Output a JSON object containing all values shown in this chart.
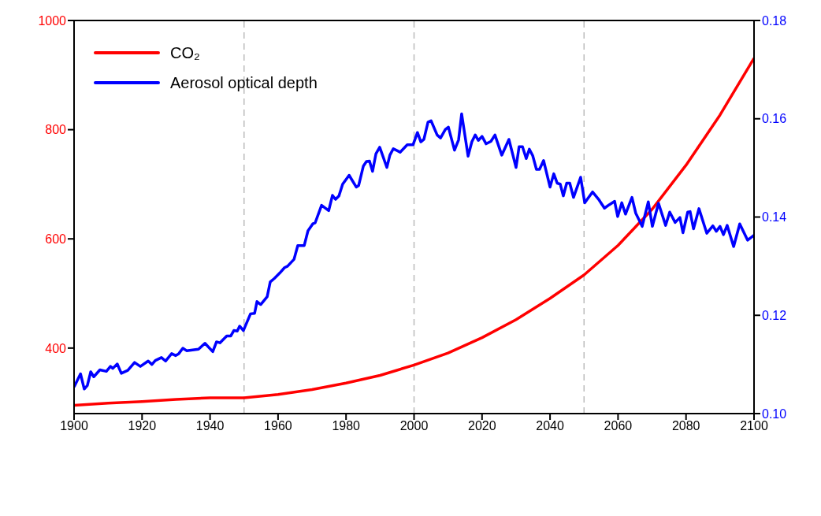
{
  "chart_data": {
    "type": "line",
    "legend": "top left",
    "grid": false,
    "marker": "none",
    "line_style": "solid",
    "xlim": [
      1900,
      2100
    ],
    "xticks": [
      1900,
      1920,
      1940,
      1960,
      1980,
      2000,
      2020,
      2040,
      2060,
      2080,
      2100
    ],
    "ylim": [
      280,
      1000
    ],
    "yticks": [
      400,
      600,
      800,
      1000
    ],
    "y2lim": [
      0.1,
      0.18
    ],
    "y2ticks": [
      {
        "value": 0.1,
        "label": "0.10"
      },
      {
        "value": 0.12,
        "label": "0.12"
      },
      {
        "value": 0.14,
        "label": "0.14"
      },
      {
        "value": 0.16,
        "label": "0.16"
      },
      {
        "value": 0.18,
        "label": "0.18"
      }
    ],
    "ref_lines": [
      {
        "axis": "x",
        "value": 1950,
        "color": "#bbbbbb",
        "line_style": "dashed"
      },
      {
        "axis": "x",
        "value": 2000,
        "color": "#bbbbbb",
        "line_style": "dashed"
      },
      {
        "axis": "x",
        "value": 2050,
        "color": "#bbbbbb",
        "line_style": "dashed"
      }
    ],
    "series": [
      {
        "name": "CO₂",
        "color": "#ff0000",
        "x": [
          1900,
          1910,
          1920,
          1930,
          1940,
          1950,
          1960,
          1970,
          1980,
          1990,
          2000,
          2010,
          2020,
          2030,
          2040,
          2050,
          2060,
          2070,
          2080,
          2090,
          2100
        ],
        "values": [
          295,
          299,
          302,
          306,
          309,
          309,
          315,
          324,
          336,
          350,
          369,
          391,
          419,
          452,
          491,
          534,
          588,
          654,
          735,
          827,
          931
        ]
      },
      {
        "name": "Aerosol optical depth",
        "color": "#0000ff",
        "axis": "y2",
        "x": [
          1900,
          1901.9,
          1903,
          1903.9,
          1904.9,
          1905.8,
          1907.6,
          1909.5,
          1910.7,
          1911.4,
          1912.7,
          1913.9,
          1915.8,
          1917.8,
          1919.5,
          1921.8,
          1922.9,
          1923.9,
          1925.7,
          1926.9,
          1928.7,
          1929.9,
          1930.8,
          1932,
          1933.1,
          1936.6,
          1938.5,
          1940.8,
          1941.9,
          1942.9,
          1944.9,
          1946.1,
          1947,
          1948,
          1948.7,
          1949.8,
          1951.9,
          1953.1,
          1953.8,
          1954.9,
          1956.8,
          1957.7,
          1958.9,
          1960.5,
          1961.9,
          1962.8,
          1964.7,
          1965.8,
          1967.7,
          1968.8,
          1970.2,
          1970.9,
          1972.8,
          1974.9,
          1976,
          1976.9,
          1977.9,
          1979,
          1980.9,
          1983,
          1983.7,
          1985.1,
          1986,
          1986.9,
          1987.8,
          1988.8,
          1989.9,
          1992,
          1992.9,
          1993.9,
          1995.9,
          1998,
          1999.7,
          2001,
          2002,
          2002.9,
          2004.1,
          2005,
          2006.8,
          2007.8,
          2009.2,
          2010.1,
          2011.9,
          2013.1,
          2014,
          2015.9,
          2017,
          2018,
          2018.9,
          2020,
          2021.2,
          2022.6,
          2023.8,
          2025.8,
          2027.9,
          2030,
          2030.9,
          2031.9,
          2033,
          2033.9,
          2034.9,
          2036,
          2036.9,
          2038.1,
          2040,
          2041.1,
          2042.1,
          2043,
          2043.9,
          2044.9,
          2045.8,
          2046.9,
          2049,
          2050.2,
          2052.5,
          2054.3,
          2056,
          2057.4,
          2059,
          2059.9,
          2061.1,
          2062.2,
          2064.1,
          2065.2,
          2067.1,
          2068.9,
          2070.1,
          2071.9,
          2074,
          2075.2,
          2076.8,
          2078.2,
          2079.1,
          2080.5,
          2081.2,
          2082.2,
          2083.8,
          2086.1,
          2087.9,
          2088.9,
          2090,
          2091,
          2092.1,
          2094,
          2095.8,
          2098.1,
          2100
        ],
        "values": [
          0.1054,
          0.1081,
          0.105,
          0.1057,
          0.1085,
          0.1075,
          0.1089,
          0.1086,
          0.1096,
          0.1092,
          0.1101,
          0.1082,
          0.1088,
          0.1104,
          0.1096,
          0.1107,
          0.11,
          0.1108,
          0.1114,
          0.1107,
          0.1122,
          0.1118,
          0.1122,
          0.1133,
          0.1128,
          0.1131,
          0.1143,
          0.1126,
          0.1146,
          0.1144,
          0.1158,
          0.1158,
          0.1169,
          0.1168,
          0.1178,
          0.1169,
          0.1203,
          0.1204,
          0.1228,
          0.1222,
          0.1238,
          0.1268,
          0.1275,
          0.1286,
          0.1297,
          0.13,
          0.1314,
          0.1342,
          0.1342,
          0.1372,
          0.1386,
          0.1388,
          0.1424,
          0.1413,
          0.1444,
          0.1436,
          0.1443,
          0.1467,
          0.1485,
          0.1461,
          0.1464,
          0.1504,
          0.1513,
          0.1514,
          0.1493,
          0.1529,
          0.1542,
          0.1501,
          0.1526,
          0.1539,
          0.1532,
          0.1547,
          0.1547,
          0.1572,
          0.1553,
          0.1558,
          0.1593,
          0.1596,
          0.1567,
          0.1561,
          0.1578,
          0.1583,
          0.1536,
          0.1557,
          0.161,
          0.1524,
          0.1553,
          0.1567,
          0.1556,
          0.1564,
          0.1549,
          0.1554,
          0.1567,
          0.1526,
          0.1558,
          0.1501,
          0.1543,
          0.1543,
          0.1519,
          0.1538,
          0.1525,
          0.1497,
          0.1497,
          0.1515,
          0.1461,
          0.1488,
          0.1469,
          0.1467,
          0.1443,
          0.1469,
          0.1469,
          0.144,
          0.1481,
          0.1429,
          0.1451,
          0.1436,
          0.1418,
          0.1425,
          0.1432,
          0.1401,
          0.1429,
          0.1406,
          0.144,
          0.1408,
          0.1381,
          0.1431,
          0.1381,
          0.1428,
          0.1383,
          0.141,
          0.1389,
          0.1399,
          0.1368,
          0.141,
          0.1411,
          0.1376,
          0.1417,
          0.1367,
          0.1382,
          0.1371,
          0.1381,
          0.1364,
          0.1383,
          0.134,
          0.1386,
          0.1353,
          0.1363
        ]
      }
    ]
  }
}
